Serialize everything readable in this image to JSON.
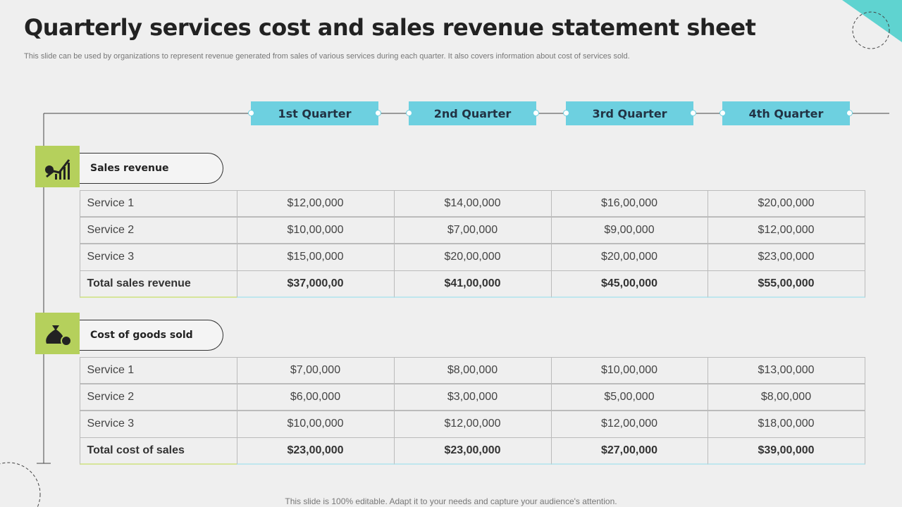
{
  "header": {
    "title": "Quarterly services cost and sales revenue statement sheet",
    "subtitle": "This slide can be used by organizations to represent revenue generated from sales of various services during each quarter. It also covers information about cost of services sold."
  },
  "quarters": [
    "1st Quarter",
    "2nd Quarter",
    "3rd Quarter",
    "4th Quarter"
  ],
  "sections": [
    {
      "title": "Sales revenue",
      "rows": [
        [
          "Service 1",
          "$12,00,000",
          "$14,00,000",
          "$16,00,000",
          "$20,00,000"
        ],
        [
          "Service 2",
          "$10,00,000",
          "$7,00,000",
          "$9,00,000",
          "$12,00,000"
        ],
        [
          "Service 3",
          "$15,00,000",
          "$20,00,000",
          "$20,00,000",
          "$23,00,000"
        ],
        [
          "Total sales revenue",
          "$37,000,00",
          "$41,00,000",
          "$45,00,000",
          "$55,00,000"
        ]
      ]
    },
    {
      "title": "Cost of goods sold",
      "rows": [
        [
          "Service 1",
          "$7,00,000",
          "$8,00,000",
          "$10,00,000",
          "$13,00,000"
        ],
        [
          "Service 2",
          "$6,00,000",
          "$3,00,000",
          "$5,00,000",
          "$8,00,000"
        ],
        [
          "Service 3",
          "$10,00,000",
          "$12,00,000",
          "$12,00,000",
          "$18,00,000"
        ],
        [
          "Total cost of sales",
          "$23,00,000",
          "$23,00,000",
          "$27,00,000",
          "$39,00,000"
        ]
      ]
    }
  ],
  "footer": "This slide is 100% editable. Adapt it to your needs and capture your audience's attention."
}
